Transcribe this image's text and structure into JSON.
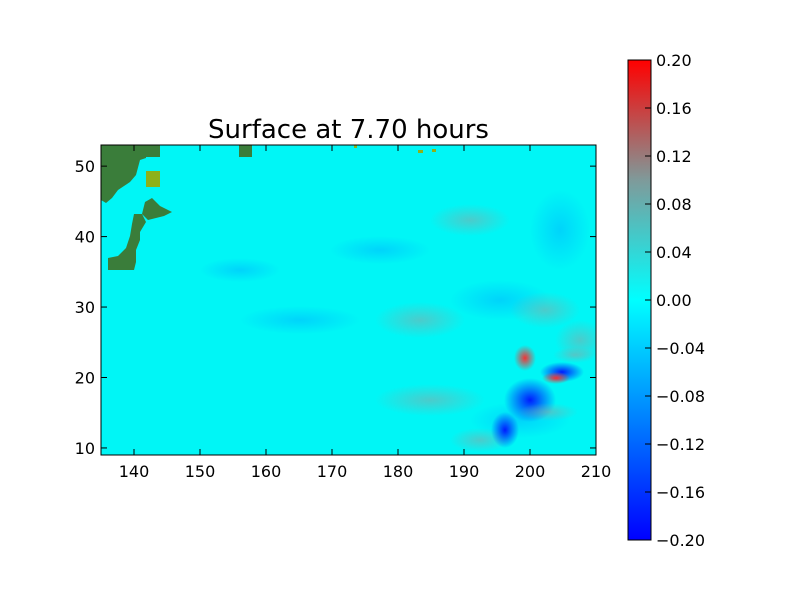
{
  "chart_data": {
    "type": "heatmap",
    "title": "Surface at 7.70 hours",
    "xlabel": "",
    "ylabel": "",
    "xlim": [
      135,
      210
    ],
    "ylim": [
      9,
      53
    ],
    "x_ticks": [
      "140",
      "150",
      "160",
      "170",
      "180",
      "190",
      "200",
      "210"
    ],
    "y_ticks": [
      "10",
      "20",
      "30",
      "40",
      "50"
    ],
    "colorbar": {
      "range": [
        -0.2,
        0.2
      ],
      "ticks": [
        "0.20",
        "0.16",
        "0.12",
        "0.08",
        "0.04",
        "0.00",
        "−0.04",
        "−0.08",
        "−0.12",
        "−0.16",
        "−0.20"
      ],
      "colormap_stops": [
        "#0000ff",
        "#00ffff",
        "#ff0000"
      ]
    },
    "background_value": 0.0,
    "colors": {
      "land": "#3a7d3a",
      "land_light": "#8db11a",
      "ocean_base": "#00ffff"
    }
  }
}
